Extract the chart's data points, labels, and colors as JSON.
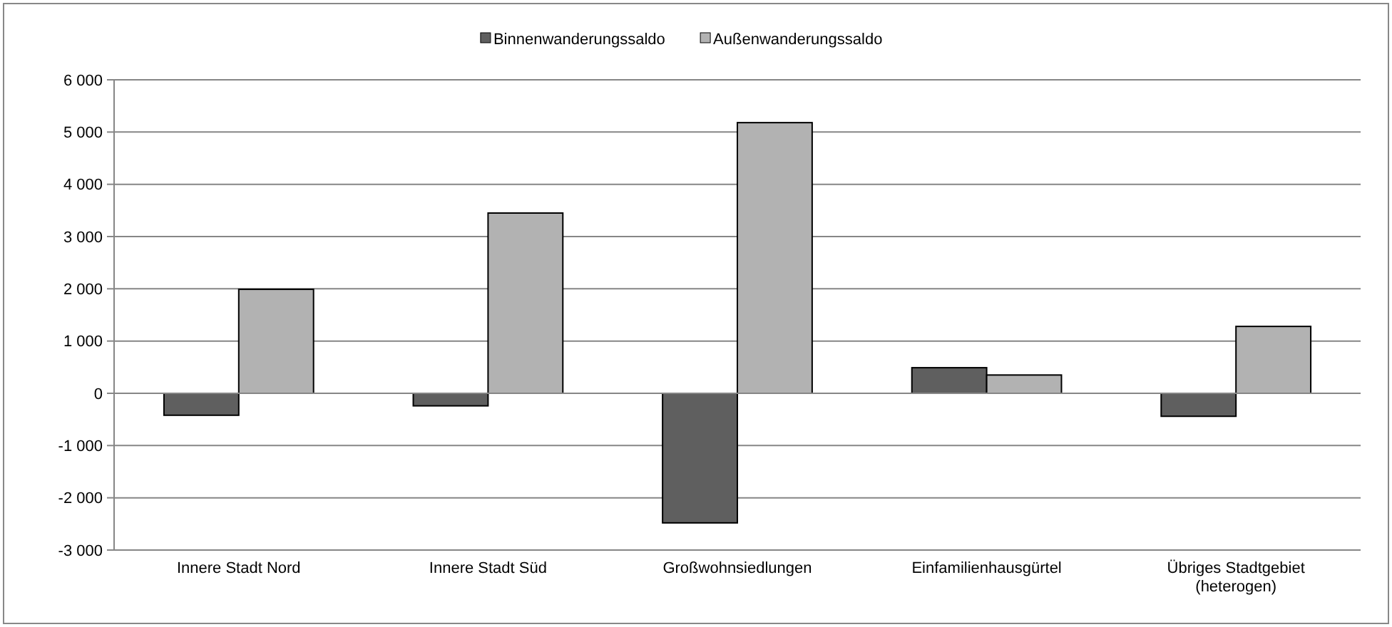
{
  "chart_data": {
    "type": "bar",
    "categories": [
      "Innere Stadt Nord",
      "Innere Stadt Süd",
      "Großwohnsiedlungen",
      "Einfamilienhausgürtel",
      "Übriges Stadtgebiet (heterogen)"
    ],
    "series": [
      {
        "name": "Binnenwanderungssaldo",
        "color": "#5f5f5f",
        "values": [
          -420,
          -240,
          -2480,
          490,
          -440
        ]
      },
      {
        "name": "Außenwanderungssaldo",
        "color": "#b2b2b2",
        "values": [
          1990,
          3450,
          5180,
          350,
          1280
        ]
      }
    ],
    "ylim": [
      -3000,
      6000
    ],
    "yticks": [
      {
        "value": -3000,
        "label": "-3 000"
      },
      {
        "value": -2000,
        "label": "-2 000"
      },
      {
        "value": -1000,
        "label": "-1 000"
      },
      0,
      {
        "value": 1000,
        "label": "1 000"
      },
      {
        "value": 2000,
        "label": "2 000"
      },
      {
        "value": 3000,
        "label": "3 000"
      },
      {
        "value": 4000,
        "label": "4 000"
      },
      {
        "value": 5000,
        "label": "5 000"
      },
      {
        "value": 6000,
        "label": "6 000"
      }
    ],
    "grid": "y",
    "legend": "top"
  }
}
